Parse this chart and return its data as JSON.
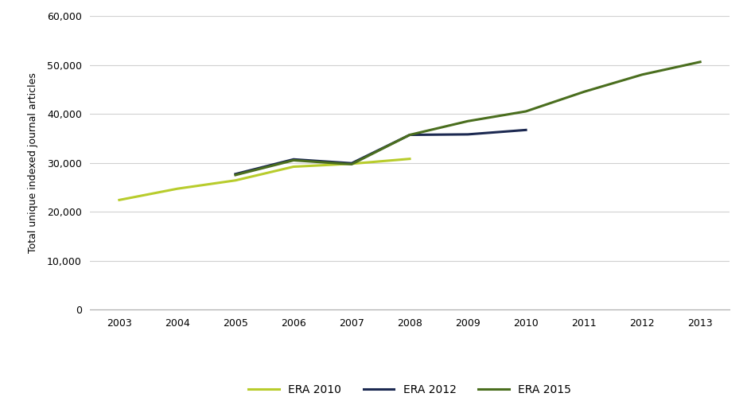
{
  "title": "",
  "ylabel": "Total unique indexed journal articles",
  "xlabel": "",
  "ylim": [
    0,
    60000
  ],
  "yticks": [
    0,
    10000,
    20000,
    30000,
    40000,
    50000,
    60000
  ],
  "xticks": [
    2003,
    2004,
    2005,
    2006,
    2007,
    2008,
    2009,
    2010,
    2011,
    2012,
    2013
  ],
  "xlim": [
    2002.5,
    2013.5
  ],
  "era2010": {
    "x": [
      2003,
      2004,
      2005,
      2006,
      2007,
      2008
    ],
    "y": [
      22400,
      24700,
      26400,
      29200,
      29800,
      30800
    ],
    "color": "#b8cc2c",
    "label": "ERA 2010",
    "linewidth": 2.2
  },
  "era2012": {
    "x": [
      2005,
      2006,
      2007,
      2008,
      2009,
      2010
    ],
    "y": [
      27700,
      30700,
      29900,
      35700,
      35800,
      36700
    ],
    "color": "#1c2951",
    "label": "ERA 2012",
    "linewidth": 2.2
  },
  "era2015": {
    "x": [
      2005,
      2006,
      2007,
      2008,
      2009,
      2010,
      2011,
      2012,
      2013
    ],
    "y": [
      27500,
      30500,
      29700,
      35700,
      38500,
      40500,
      44500,
      48000,
      50600
    ],
    "color": "#4a6e1e",
    "label": "ERA 2015",
    "linewidth": 2.2
  },
  "background_color": "#ffffff",
  "grid_color": "#d0d0d0",
  "ylabel_fontsize": 9,
  "tick_fontsize": 9,
  "legend_fontsize": 10
}
